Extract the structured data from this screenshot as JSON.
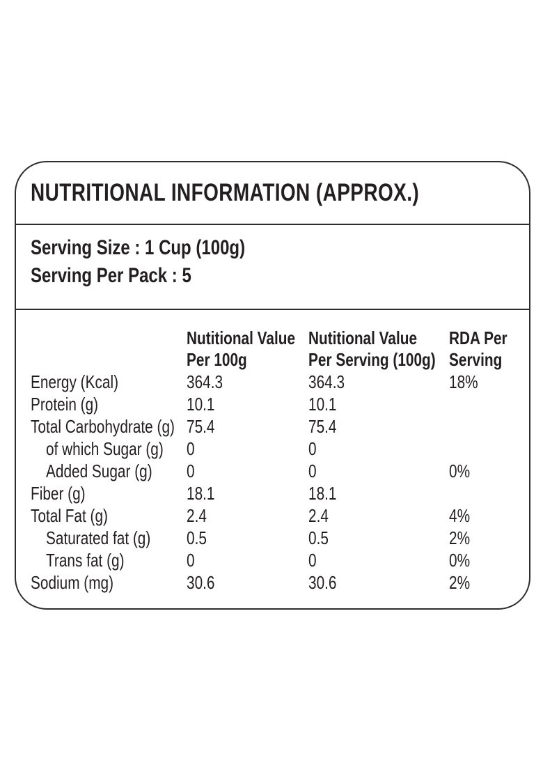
{
  "card": {
    "title": "NUTRITIONAL INFORMATION (APPROX.)",
    "serving": {
      "size_line": "Serving Size : 1 Cup (100g)",
      "pack_line": "Serving Per Pack : 5"
    },
    "table": {
      "headers": [
        {
          "line1": "Nutitional Value",
          "line2": "Per 100g"
        },
        {
          "line1": "Nutitional Value",
          "line2": "Per Serving (100g)"
        },
        {
          "line1": "RDA Per",
          "line2": "Serving"
        }
      ],
      "rows": [
        {
          "label": "Energy (Kcal)",
          "indent": false,
          "per100g": "364.3",
          "per_serving": "364.3",
          "rda": "18%"
        },
        {
          "label": "Protein (g)",
          "indent": false,
          "per100g": "10.1",
          "per_serving": "10.1",
          "rda": ""
        },
        {
          "label": "Total Carbohydrate (g)",
          "indent": false,
          "per100g": "75.4",
          "per_serving": "75.4",
          "rda": ""
        },
        {
          "label": "of which Sugar (g)",
          "indent": true,
          "per100g": "0",
          "per_serving": "0",
          "rda": ""
        },
        {
          "label": "Added Sugar (g)",
          "indent": true,
          "per100g": "0",
          "per_serving": "0",
          "rda": "0%"
        },
        {
          "label": "Fiber (g)",
          "indent": false,
          "per100g": "18.1",
          "per_serving": "18.1",
          "rda": ""
        },
        {
          "label": "Total Fat (g)",
          "indent": false,
          "per100g": "2.4",
          "per_serving": "2.4",
          "rda": "4%"
        },
        {
          "label": "Saturated fat (g)",
          "indent": true,
          "per100g": "0.5",
          "per_serving": "0.5",
          "rda": "2%"
        },
        {
          "label": "Trans fat (g)",
          "indent": true,
          "per100g": "0",
          "per_serving": "0",
          "rda": "0%"
        },
        {
          "label": "Sodium (mg)",
          "indent": false,
          "per100g": "30.6",
          "per_serving": "30.6",
          "rda": "2%"
        }
      ]
    },
    "colors": {
      "ink": "#231f20",
      "line": "#2d2d2d",
      "background": "#ffffff"
    }
  }
}
